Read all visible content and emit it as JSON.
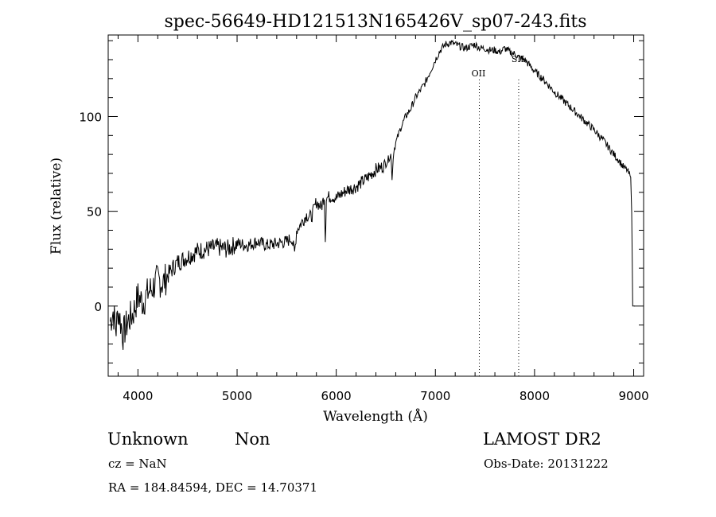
{
  "chart_data": {
    "type": "line",
    "title": "spec-56649-HD121513N165426V_sp07-243.fits",
    "xlabel": "Wavelength (Å)",
    "ylabel": "Flux (relative)",
    "xlim": [
      3700,
      9100
    ],
    "ylim": [
      -37,
      143
    ],
    "x_ticks": [
      4000,
      5000,
      6000,
      7000,
      8000,
      9000
    ],
    "y_ticks": [
      0,
      50,
      100
    ],
    "line_color": "#000000",
    "annotations": [
      {
        "label": "OII",
        "x": 7443
      },
      {
        "label": "SII",
        "x": 7840
      }
    ],
    "series": [
      {
        "x": [
          3720,
          3750,
          3780,
          3800,
          3850,
          3900,
          3950,
          4000,
          4050,
          4100,
          4150,
          4200,
          4250,
          4300,
          4350,
          4400,
          4500,
          4600,
          4700,
          4800,
          4900,
          5000,
          5100,
          5200,
          5300,
          5400,
          5500,
          5550,
          5580,
          5600,
          5650,
          5700,
          5750,
          5800,
          5850,
          5880,
          5890,
          5900,
          5950,
          6000,
          6100,
          6200,
          6300,
          6400,
          6450,
          6500,
          6550,
          6563,
          6580,
          6600,
          6650,
          6700,
          6750,
          6800,
          6850,
          6900,
          6950,
          7000,
          7050,
          7100,
          7150,
          7200,
          7250,
          7300,
          7350,
          7400,
          7450,
          7500,
          7550,
          7600,
          7650,
          7700,
          7750,
          7800,
          7850,
          7900,
          7950,
          8000,
          8100,
          8200,
          8300,
          8400,
          8500,
          8600,
          8700,
          8800,
          8850,
          8900,
          8930,
          8950,
          8970,
          8980,
          8990,
          9000,
          9010
        ],
        "y": [
          -8,
          -3,
          -12,
          -2,
          -15,
          -8,
          -4,
          5,
          2,
          7,
          10,
          14,
          12,
          16,
          20,
          23,
          26,
          29,
          30,
          31,
          30,
          33,
          32,
          34,
          32,
          33,
          34,
          36,
          28,
          40,
          44,
          48,
          47,
          55,
          52,
          58,
          35,
          57,
          58,
          57,
          61,
          63,
          67,
          72,
          73,
          75,
          80,
          68,
          82,
          86,
          94,
          100,
          104,
          110,
          114,
          118,
          124,
          130,
          135,
          138,
          139,
          138,
          137,
          136,
          137,
          138,
          136,
          136,
          135,
          135,
          134,
          136,
          134,
          133,
          131,
          130,
          127,
          124,
          119,
          113,
          108,
          103,
          98,
          93,
          87,
          80,
          77,
          73,
          72,
          70,
          68,
          50,
          0,
          0,
          0
        ]
      }
    ]
  },
  "footer": {
    "class_text": "Unknown",
    "subclass_text": "Non",
    "survey": "LAMOST DR2",
    "cz": "cz = NaN",
    "obs_date": "Obs-Date: 20131222",
    "coords": "RA = 184.84594, DEC =  14.70371"
  }
}
